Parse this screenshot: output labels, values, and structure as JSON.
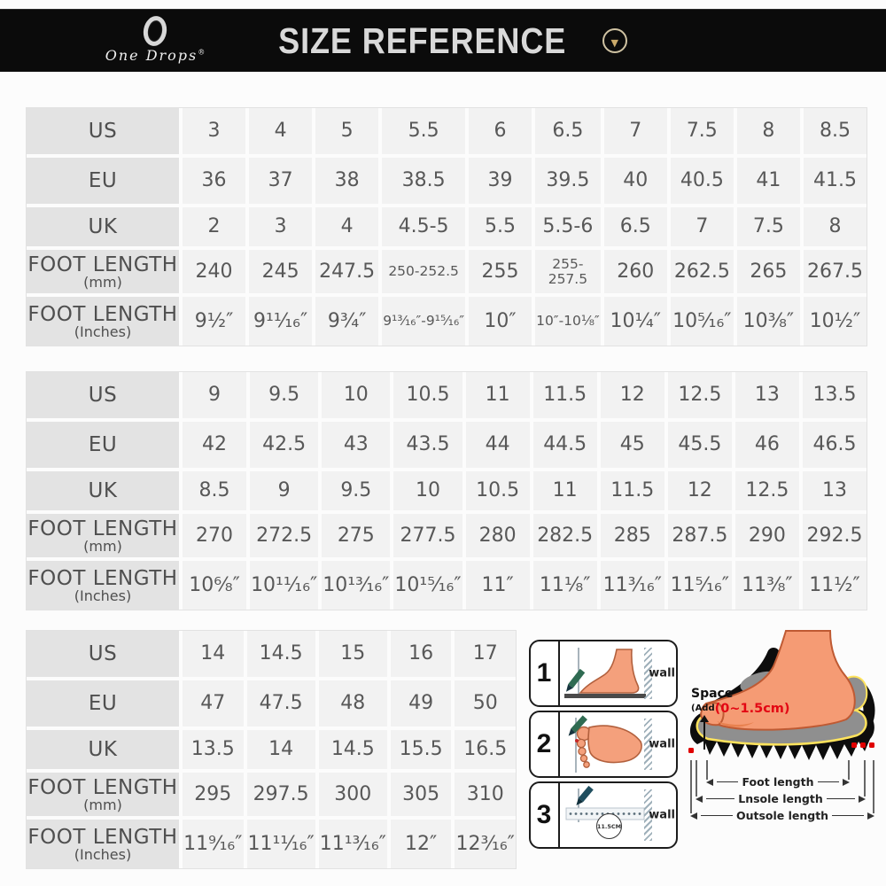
{
  "header": {
    "brand": "One Drops",
    "brand_reg": "®",
    "title": "SIZE REFERENCE"
  },
  "tables": [
    {
      "rows": [
        {
          "label": "US",
          "sublabel": "",
          "values": [
            "3",
            "4",
            "5",
            "5.5",
            "6",
            "6.5",
            "7",
            "7.5",
            "8",
            "8.5"
          ]
        },
        {
          "label": "EU",
          "sublabel": "",
          "values": [
            "36",
            "37",
            "38",
            "38.5",
            "39",
            "39.5",
            "40",
            "40.5",
            "41",
            "41.5"
          ]
        },
        {
          "label": "UK",
          "sublabel": "",
          "values": [
            "2",
            "3",
            "4",
            "4.5-5",
            "5.5",
            "5.5-6",
            "6.5",
            "7",
            "7.5",
            "8"
          ]
        },
        {
          "label": "FOOT LENGTH",
          "sublabel": "(mm)",
          "values": [
            "240",
            "245",
            "247.5",
            "250-252.5",
            "255",
            "255-257.5",
            "260",
            "262.5",
            "265",
            "267.5"
          ]
        },
        {
          "label": "FOOT LENGTH",
          "sublabel": "(Inches)",
          "values": [
            "9¹⁄₂″",
            "9¹¹⁄₁₆″",
            "9³⁄₄″",
            "9¹³⁄₁₆″-9¹⁵⁄₁₆″",
            "10″",
            "10″-10¹⁄₈″",
            "10¹⁄₄″",
            "10⁵⁄₁₆″",
            "10³⁄₈″",
            "10¹⁄₂″"
          ]
        }
      ]
    },
    {
      "rows": [
        {
          "label": "US",
          "sublabel": "",
          "values": [
            "9",
            "9.5",
            "10",
            "10.5",
            "11",
            "11.5",
            "12",
            "12.5",
            "13",
            "13.5"
          ]
        },
        {
          "label": "EU",
          "sublabel": "",
          "values": [
            "42",
            "42.5",
            "43",
            "43.5",
            "44",
            "44.5",
            "45",
            "45.5",
            "46",
            "46.5"
          ]
        },
        {
          "label": "UK",
          "sublabel": "",
          "values": [
            "8.5",
            "9",
            "9.5",
            "10",
            "10.5",
            "11",
            "11.5",
            "12",
            "12.5",
            "13"
          ]
        },
        {
          "label": "FOOT LENGTH",
          "sublabel": "(mm)",
          "values": [
            "270",
            "272.5",
            "275",
            "277.5",
            "280",
            "282.5",
            "285",
            "287.5",
            "290",
            "292.5"
          ]
        },
        {
          "label": "FOOT LENGTH",
          "sublabel": "(Inches)",
          "values": [
            "10⁶⁄₈″",
            "10¹¹⁄₁₆″",
            "10¹³⁄₁₆″",
            "10¹⁵⁄₁₆″",
            "11″",
            "11¹⁄₈″",
            "11³⁄₁₆″",
            "11⁵⁄₁₆″",
            "11³⁄₈″",
            "11¹⁄₂″"
          ]
        }
      ]
    },
    {
      "rows": [
        {
          "label": "US",
          "sublabel": "",
          "values": [
            "14",
            "14.5",
            "15",
            "16",
            "17"
          ]
        },
        {
          "label": "EU",
          "sublabel": "",
          "values": [
            "47",
            "47.5",
            "48",
            "49",
            "50"
          ]
        },
        {
          "label": "UK",
          "sublabel": "",
          "values": [
            "13.5",
            "14",
            "14.5",
            "15.5",
            "16.5"
          ]
        },
        {
          "label": "FOOT LENGTH",
          "sublabel": "(mm)",
          "values": [
            "295",
            "297.5",
            "300",
            "305",
            "310"
          ]
        },
        {
          "label": "FOOT LENGTH",
          "sublabel": "(Inches)",
          "values": [
            "11⁹⁄₁₆″",
            "11¹¹⁄₁₆″",
            "11¹³⁄₁₆″",
            "12″",
            "12³⁄₁₆″"
          ]
        }
      ]
    }
  ],
  "diagram": {
    "steps": [
      {
        "number": "1",
        "wall_label": "wall"
      },
      {
        "number": "2",
        "wall_label": "wall"
      },
      {
        "number": "3",
        "wall_label": "wall",
        "circle_label": "11.5CM"
      }
    ],
    "space_label": "Space",
    "space_prefix": "(Add",
    "space_value": "(0~1.5cm)",
    "measures": [
      "Foot length",
      "Lnsole length",
      "Outsole length"
    ]
  },
  "colors": {
    "accent_gold": "#c9a96a",
    "foot_skin": "#f59b74",
    "space_red": "#e30613",
    "pen_green": "#2f6b52",
    "sole_black": "#0d0d0d",
    "insole_gray": "#8f8f8f",
    "insole_outline": "#ffe35c"
  }
}
